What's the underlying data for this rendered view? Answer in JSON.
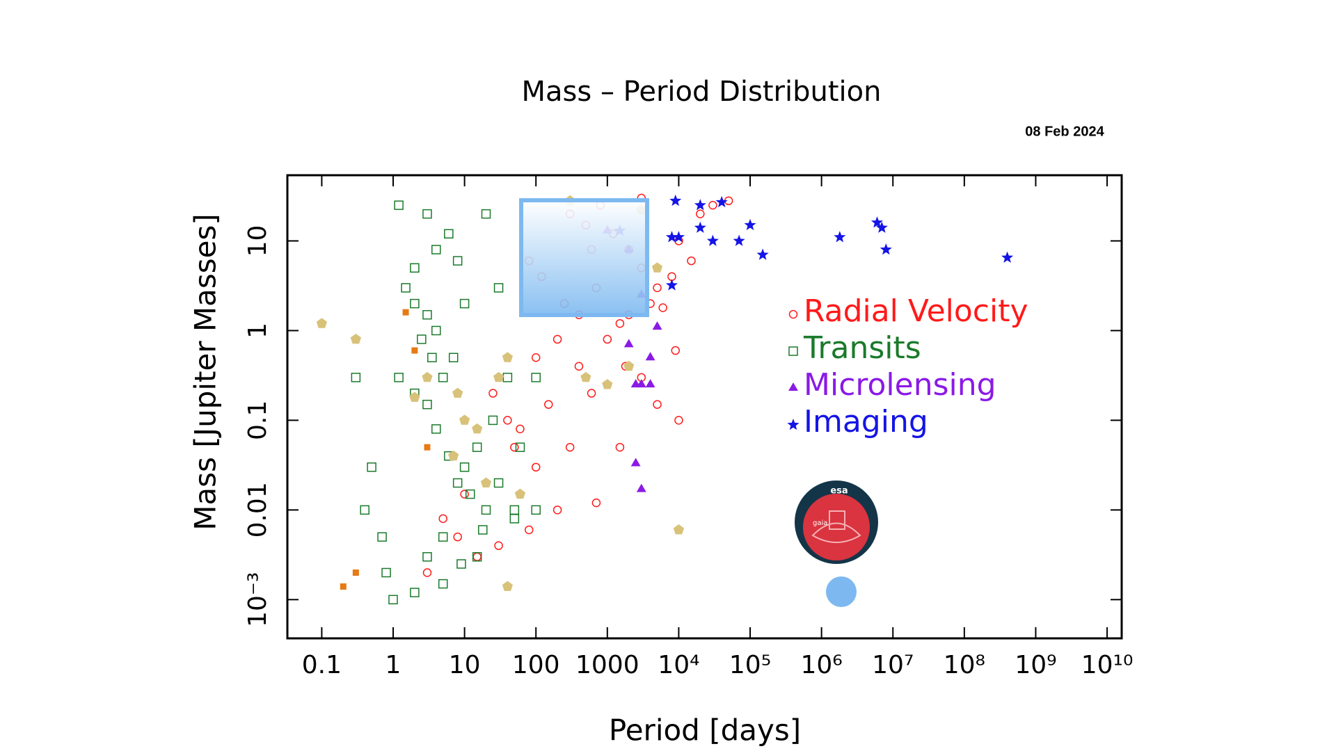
{
  "chart_data": {
    "type": "scatter",
    "title": "Mass – Period Distribution",
    "date": "08 Feb 2024",
    "x_label": "Period [days]",
    "y_label": "Mass [Jupiter Masses]",
    "xscale": "log",
    "yscale": "log",
    "xlim": [
      0.033,
      16000000000
    ],
    "ylim": [
      0.00037,
      54
    ],
    "xticks": [
      0.1,
      1,
      10,
      100,
      1000,
      {
        "value": 10000,
        "label": "10⁴"
      },
      {
        "value": 100000,
        "label": "10⁵"
      },
      {
        "value": 1000000,
        "label": "10⁶"
      },
      {
        "value": 10000000,
        "label": "10⁷"
      },
      {
        "value": 100000000,
        "label": "10⁸"
      },
      {
        "value": 1000000000,
        "label": "10⁹"
      },
      {
        "value": 10000000000,
        "label": "10¹⁰"
      }
    ],
    "yticks": [
      {
        "value": 0.001,
        "label": "10⁻³"
      },
      0.01,
      0.1,
      1,
      10
    ],
    "series": [
      {
        "name": "Radial Velocity",
        "color": "#ff1a1a",
        "marker": "circle",
        "x": [
          300,
          500,
          800,
          1200,
          2000,
          3000,
          5000,
          700,
          400,
          200,
          100,
          1000,
          1500,
          3000,
          5000,
          10000,
          50,
          20,
          10,
          5,
          30,
          15,
          3,
          8,
          100,
          300,
          600,
          400,
          150,
          60,
          2000,
          4000,
          8000,
          10000,
          20000,
          30000,
          50000,
          15000,
          6000,
          3000,
          700,
          1500,
          200,
          80,
          40,
          25,
          9000,
          1800,
          250,
          120,
          80,
          600
        ],
        "values": [
          20,
          15,
          25,
          12,
          8,
          5,
          3,
          3,
          1.5,
          0.8,
          0.5,
          0.8,
          1.2,
          0.3,
          0.15,
          0.1,
          0.05,
          0.02,
          0.015,
          0.008,
          0.004,
          0.003,
          0.002,
          0.005,
          0.03,
          0.05,
          0.2,
          0.4,
          0.15,
          0.08,
          1.5,
          2,
          4,
          10,
          20,
          25,
          28,
          6,
          1.8,
          30,
          0.012,
          0.05,
          0.01,
          0.006,
          0.1,
          0.2,
          0.6,
          0.4,
          2,
          4,
          6,
          8
        ]
      },
      {
        "name": "Transits",
        "color": "#1a7a2a",
        "marker": "square",
        "x": [
          1.2,
          3,
          2,
          3,
          4,
          2.5,
          3.5,
          5,
          1.5,
          2,
          4,
          6,
          8,
          10,
          1.2,
          0.5,
          0.4,
          0.7,
          0.8,
          1,
          2,
          3,
          5,
          8,
          10,
          15,
          12,
          20,
          30,
          6,
          4,
          3,
          2,
          25,
          40,
          60,
          50,
          15,
          0.3,
          7,
          20,
          100,
          30,
          18,
          9,
          5,
          50,
          100
        ],
        "values": [
          25,
          20,
          2,
          1.5,
          1,
          0.8,
          0.5,
          0.3,
          3,
          5,
          8,
          12,
          6,
          2,
          0.3,
          0.03,
          0.01,
          0.005,
          0.002,
          0.001,
          0.0012,
          0.003,
          0.005,
          0.02,
          0.03,
          0.05,
          0.015,
          0.01,
          0.02,
          0.04,
          0.08,
          0.15,
          0.2,
          0.1,
          0.3,
          0.05,
          0.008,
          0.003,
          0.3,
          0.5,
          20,
          0.3,
          3,
          0.006,
          0.0025,
          0.0015,
          0.01,
          0.01
        ]
      },
      {
        "name": "Microlensing",
        "color": "#8a1ae6",
        "marker": "triangle",
        "x": [
          1000,
          2000,
          3000,
          2000,
          2500,
          3000,
          4000,
          5000,
          2500,
          3000,
          4000
        ],
        "values": [
          13,
          8,
          2.5,
          0.7,
          0.25,
          0.25,
          0.25,
          1.1,
          0.033,
          0.017,
          0.5
        ]
      },
      {
        "name": "Imaging",
        "color": "#1414e6",
        "marker": "star",
        "x": [
          9000,
          20000,
          40000,
          8000,
          20000,
          10000,
          30000,
          70000,
          100000,
          150000,
          1800000,
          6000000,
          7000000,
          8000000,
          400000000,
          1500,
          8000
        ],
        "values": [
          28,
          25,
          27,
          11,
          14,
          11,
          10,
          10,
          15,
          7,
          11,
          16,
          14,
          8,
          6.5,
          13,
          3.2
        ]
      },
      {
        "color": "#d8c27a",
        "marker": "pentagon",
        "x": [
          0.1,
          0.3,
          3,
          2,
          8,
          10,
          7,
          15,
          30,
          40,
          20,
          40,
          10000,
          500,
          1000,
          60,
          300,
          3000,
          5000,
          2000
        ],
        "values": [
          1.2,
          0.8,
          0.3,
          0.18,
          0.2,
          0.1,
          0.04,
          0.08,
          0.3,
          0.5,
          0.02,
          0.0014,
          0.006,
          0.3,
          0.25,
          0.015,
          28,
          22,
          5,
          0.4
        ]
      },
      {
        "color": "#e67a14",
        "marker": "filled-square",
        "x": [
          0.2,
          0.3,
          2,
          3,
          1.5
        ],
        "values": [
          0.0014,
          0.002,
          0.6,
          0.05,
          1.6
        ]
      }
    ]
  },
  "logo": {
    "agency": "esa",
    "mission": "gaia"
  }
}
